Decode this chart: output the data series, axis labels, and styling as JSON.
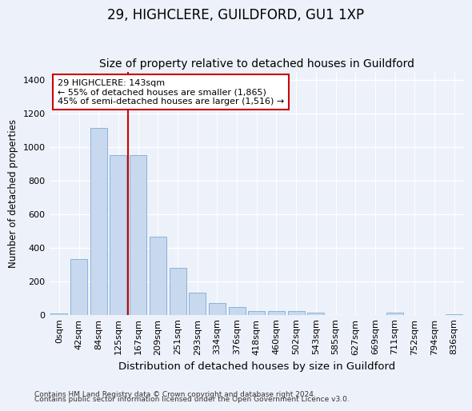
{
  "title": "29, HIGHCLERE, GUILDFORD, GU1 1XP",
  "subtitle": "Size of property relative to detached houses in Guildford",
  "xlabel": "Distribution of detached houses by size in Guildford",
  "ylabel": "Number of detached properties",
  "footnote1": "Contains HM Land Registry data © Crown copyright and database right 2024.",
  "footnote2": "Contains public sector information licensed under the Open Government Licence v3.0.",
  "bin_labels": [
    "0sqm",
    "42sqm",
    "84sqm",
    "125sqm",
    "167sqm",
    "209sqm",
    "251sqm",
    "293sqm",
    "334sqm",
    "376sqm",
    "418sqm",
    "460sqm",
    "502sqm",
    "543sqm",
    "585sqm",
    "627sqm",
    "669sqm",
    "711sqm",
    "752sqm",
    "794sqm",
    "836sqm"
  ],
  "bar_values": [
    10,
    330,
    1115,
    950,
    950,
    465,
    280,
    130,
    70,
    45,
    20,
    20,
    20,
    15,
    0,
    0,
    0,
    15,
    0,
    0,
    5
  ],
  "bar_color": "#c8d8ee",
  "bar_edge_color": "#7aadd4",
  "vline_x": 3.5,
  "vline_color": "#cc0000",
  "annotation_line1": "29 HIGHCLERE: 143sqm",
  "annotation_line2": "← 55% of detached houses are smaller (1,865)",
  "annotation_line3": "45% of semi-detached houses are larger (1,516) →",
  "annotation_box_color": "white",
  "annotation_box_edge": "#cc0000",
  "ylim": [
    0,
    1450
  ],
  "yticks": [
    0,
    200,
    400,
    600,
    800,
    1000,
    1200,
    1400
  ],
  "background_color": "#edf1f9",
  "grid_color": "white",
  "title_fontsize": 12,
  "subtitle_fontsize": 10,
  "xlabel_fontsize": 9.5,
  "ylabel_fontsize": 8.5,
  "tick_fontsize": 8,
  "annot_fontsize": 8,
  "footnote_fontsize": 6.5
}
